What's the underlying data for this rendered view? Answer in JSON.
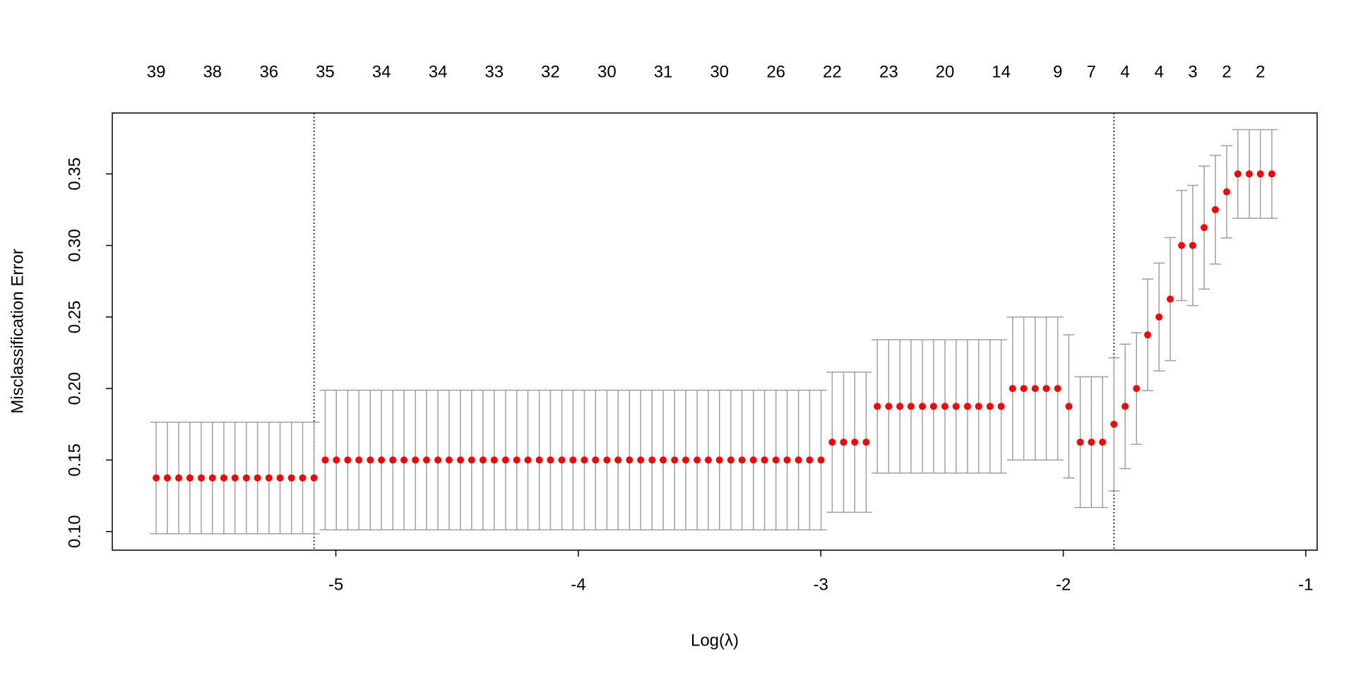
{
  "chart_data": {
    "type": "scatter",
    "x_label": "Log(λ)",
    "y_label": "Misclassification Error",
    "x": [
      -5.741,
      -5.695,
      -5.648,
      -5.602,
      -5.555,
      -5.509,
      -5.462,
      -5.416,
      -5.369,
      -5.323,
      -5.276,
      -5.23,
      -5.183,
      -5.137,
      -5.09,
      -5.044,
      -4.998,
      -4.951,
      -4.905,
      -4.858,
      -4.812,
      -4.765,
      -4.719,
      -4.672,
      -4.626,
      -4.579,
      -4.533,
      -4.486,
      -4.44,
      -4.393,
      -4.347,
      -4.3,
      -4.254,
      -4.208,
      -4.161,
      -4.115,
      -4.068,
      -4.022,
      -3.975,
      -3.929,
      -3.882,
      -3.836,
      -3.789,
      -3.743,
      -3.696,
      -3.65,
      -3.603,
      -3.557,
      -3.51,
      -3.464,
      -3.418,
      -3.371,
      -3.325,
      -3.278,
      -3.232,
      -3.185,
      -3.139,
      -3.092,
      -3.046,
      -2.999,
      -2.953,
      -2.906,
      -2.86,
      -2.813,
      -2.767,
      -2.72,
      -2.674,
      -2.628,
      -2.581,
      -2.535,
      -2.488,
      -2.442,
      -2.395,
      -2.349,
      -2.302,
      -2.256,
      -2.209,
      -2.163,
      -2.116,
      -2.07,
      -2.023,
      -1.977,
      -1.93,
      -1.884,
      -1.838,
      -1.791,
      -1.745,
      -1.698,
      -1.652,
      -1.605,
      -1.559,
      -1.512,
      -1.466,
      -1.419,
      -1.373,
      -1.326,
      -1.28,
      -1.233,
      -1.187,
      -1.14
    ],
    "values": [
      0.1375,
      0.1375,
      0.1375,
      0.1375,
      0.1375,
      0.1375,
      0.1375,
      0.1375,
      0.1375,
      0.1375,
      0.1375,
      0.1375,
      0.1375,
      0.1375,
      0.1375,
      0.15,
      0.15,
      0.15,
      0.15,
      0.15,
      0.15,
      0.15,
      0.15,
      0.15,
      0.15,
      0.15,
      0.15,
      0.15,
      0.15,
      0.15,
      0.15,
      0.15,
      0.15,
      0.15,
      0.15,
      0.15,
      0.15,
      0.15,
      0.15,
      0.15,
      0.15,
      0.15,
      0.15,
      0.15,
      0.15,
      0.15,
      0.15,
      0.15,
      0.15,
      0.15,
      0.15,
      0.15,
      0.15,
      0.15,
      0.15,
      0.15,
      0.15,
      0.15,
      0.15,
      0.15,
      0.1625,
      0.1625,
      0.1625,
      0.1625,
      0.1875,
      0.1875,
      0.1875,
      0.1875,
      0.1875,
      0.1875,
      0.1875,
      0.1875,
      0.1875,
      0.1875,
      0.1875,
      0.1875,
      0.2,
      0.2,
      0.2,
      0.2,
      0.2,
      0.1875,
      0.1625,
      0.1625,
      0.1625,
      0.175,
      0.1875,
      0.2,
      0.2375,
      0.25,
      0.2625,
      0.3,
      0.3,
      0.3125,
      0.325,
      0.3375,
      0.35,
      0.35,
      0.35,
      0.35
    ],
    "errors": [
      0.039,
      0.039,
      0.039,
      0.039,
      0.039,
      0.039,
      0.039,
      0.039,
      0.039,
      0.039,
      0.039,
      0.039,
      0.039,
      0.039,
      0.039,
      0.0488,
      0.0488,
      0.0488,
      0.0488,
      0.0488,
      0.0488,
      0.0488,
      0.0488,
      0.0488,
      0.0488,
      0.0488,
      0.0488,
      0.0488,
      0.0488,
      0.0488,
      0.0488,
      0.0488,
      0.0488,
      0.0488,
      0.0488,
      0.0488,
      0.0488,
      0.0488,
      0.0488,
      0.0488,
      0.0488,
      0.0488,
      0.0488,
      0.0488,
      0.0488,
      0.0488,
      0.0488,
      0.0488,
      0.0488,
      0.0488,
      0.0488,
      0.0488,
      0.0488,
      0.0488,
      0.0488,
      0.0488,
      0.0488,
      0.0488,
      0.0488,
      0.0488,
      0.049,
      0.049,
      0.049,
      0.049,
      0.0466,
      0.0466,
      0.0466,
      0.0466,
      0.0466,
      0.0466,
      0.0466,
      0.0466,
      0.0466,
      0.0466,
      0.0466,
      0.0466,
      0.05,
      0.05,
      0.05,
      0.05,
      0.05,
      0.05,
      0.0457,
      0.0457,
      0.0457,
      0.0465,
      0.0435,
      0.039,
      0.039,
      0.0377,
      0.043,
      0.0385,
      0.042,
      0.043,
      0.038,
      0.0322,
      0.031,
      0.031,
      0.031,
      0.031
    ],
    "color": "#ff0000",
    "error_color": "#a0a0a0",
    "vlines": [
      -5.09,
      -1.791
    ],
    "xlim": [
      -5.922,
      -0.953
    ],
    "ylim": [
      0.087,
      0.3926
    ],
    "xticks": [
      -5,
      -4,
      -3,
      -2,
      -1
    ],
    "yticks": [
      {
        "value": 0.1,
        "label": "0.10"
      },
      0.15,
      {
        "value": 0.2,
        "label": "0.20"
      },
      0.25,
      {
        "value": 0.3,
        "label": "0.30"
      },
      0.35
    ],
    "top_ticks": [
      {
        "value": -5.741,
        "label": "39"
      },
      {
        "value": -5.509,
        "label": "38"
      },
      {
        "value": -5.276,
        "label": "36"
      },
      {
        "value": -5.044,
        "label": "35"
      },
      {
        "value": -4.812,
        "label": "34"
      },
      {
        "value": -4.579,
        "label": "34"
      },
      {
        "value": -4.347,
        "label": "33"
      },
      {
        "value": -4.115,
        "label": "32"
      },
      {
        "value": -3.882,
        "label": "30"
      },
      {
        "value": -3.65,
        "label": "31"
      },
      {
        "value": -3.418,
        "label": "30"
      },
      {
        "value": -3.185,
        "label": "26"
      },
      {
        "value": -2.953,
        "label": "22"
      },
      {
        "value": -2.72,
        "label": "23"
      },
      {
        "value": -2.488,
        "label": "20"
      },
      {
        "value": -2.256,
        "label": "14"
      },
      {
        "value": -2.023,
        "label": "9"
      },
      {
        "value": -1.884,
        "label": "7"
      },
      {
        "value": -1.745,
        "label": "4"
      },
      {
        "value": -1.605,
        "label": "4"
      },
      {
        "value": -1.466,
        "label": "3"
      },
      {
        "value": -1.326,
        "label": "2"
      },
      {
        "value": -1.187,
        "label": "2"
      }
    ]
  }
}
